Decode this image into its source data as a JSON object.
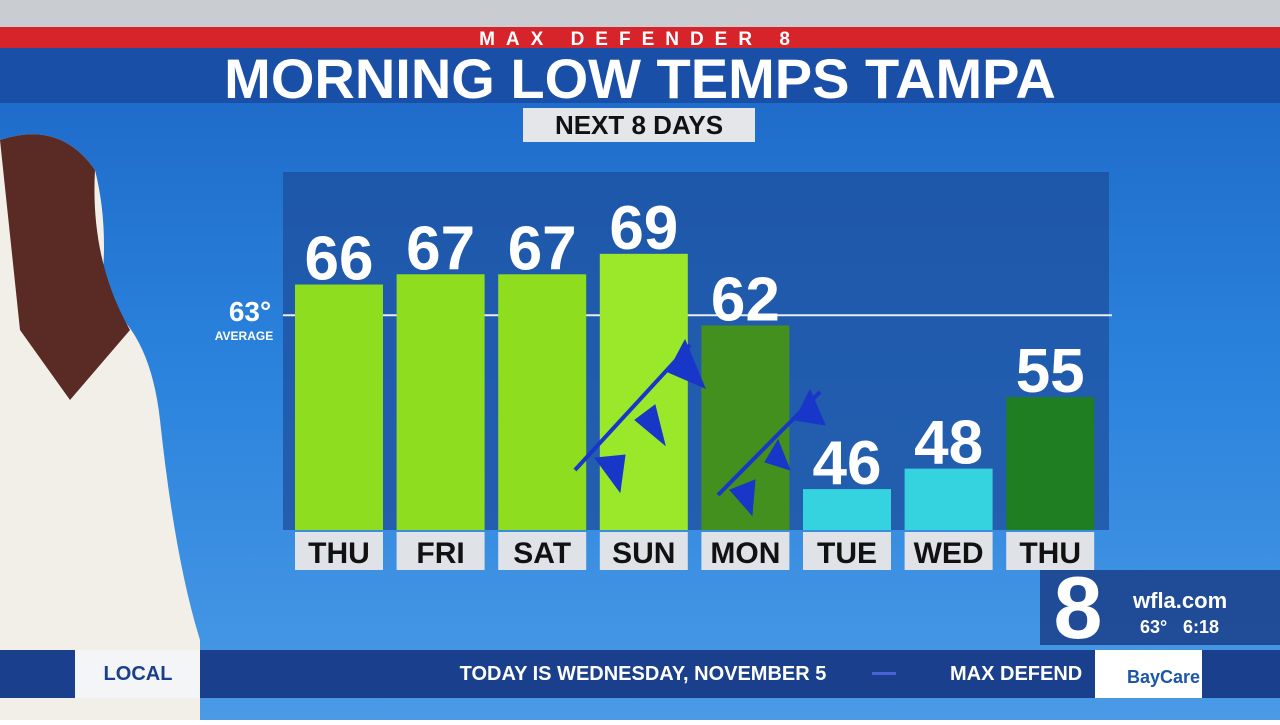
{
  "chart_data": {
    "type": "bar",
    "banner": "MAX DEFENDER 8",
    "title": "MORNING LOW TEMPS TAMPA",
    "subtitle": "NEXT 8 DAYS",
    "categories": [
      "THU",
      "FRI",
      "SAT",
      "SUN",
      "MON",
      "TUE",
      "WED",
      "THU"
    ],
    "values": [
      66,
      67,
      67,
      69,
      62,
      46,
      48,
      55
    ],
    "colors": [
      "#8ede1f",
      "#8ede1f",
      "#8ede1f",
      "#9be82a",
      "#43901f",
      "#35d3df",
      "#35d3df",
      "#1f7d22"
    ],
    "ylim": [
      42,
      77
    ],
    "average": {
      "value": 63,
      "label": "63°",
      "caption": "AVERAGE"
    }
  },
  "station": {
    "logo": "8",
    "site": "wfla.com",
    "temp": "63°",
    "time": "6:18",
    "sponsor": "BayCare"
  },
  "ticker": {
    "tag": "LOCAL",
    "items": [
      "TODAY IS WEDNESDAY, NOVEMBER 5",
      "MAX DEFEND"
    ]
  }
}
